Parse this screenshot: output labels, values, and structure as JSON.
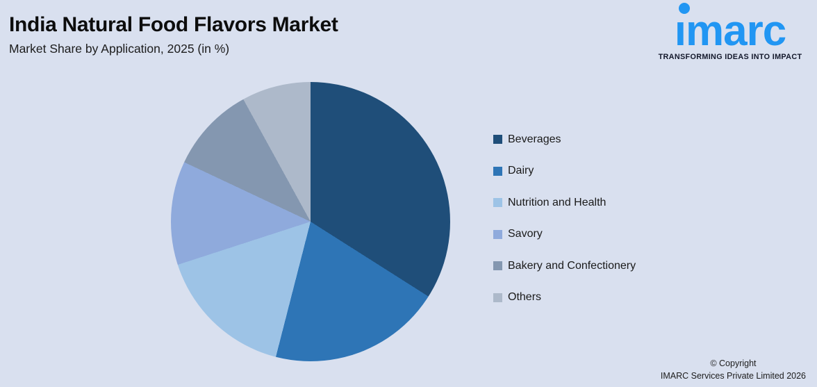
{
  "page": {
    "background_color": "#d9e0ef"
  },
  "header": {
    "title": "India Natural Food Flavors Market",
    "subtitle": "Market Share by Application, 2025 (in %)"
  },
  "logo": {
    "brand": "imarc",
    "tagline": "TRANSFORMING IDEAS INTO IMPACT",
    "brand_color": "#2196f3"
  },
  "chart_data": {
    "type": "pie",
    "title": "India Natural Food Flavors Market",
    "subtitle": "Market Share by Application, 2025 (in %)",
    "unit": "%",
    "start_angle_deg": 0,
    "direction": "clockwise",
    "legend_position": "right",
    "data_labels": false,
    "categories": [
      "Beverages",
      "Dairy",
      "Nutrition and Health",
      "Savory",
      "Bakery and Confectionery",
      "Others"
    ],
    "values": [
      34,
      20,
      16,
      12,
      10,
      8
    ],
    "colors": [
      "#1F4E79",
      "#2E75B6",
      "#9DC3E6",
      "#8FAADC",
      "#8497B0",
      "#ADB9CA"
    ]
  },
  "footer": {
    "line1": "© Copyright",
    "line2": "IMARC Services Private Limited 2026"
  }
}
